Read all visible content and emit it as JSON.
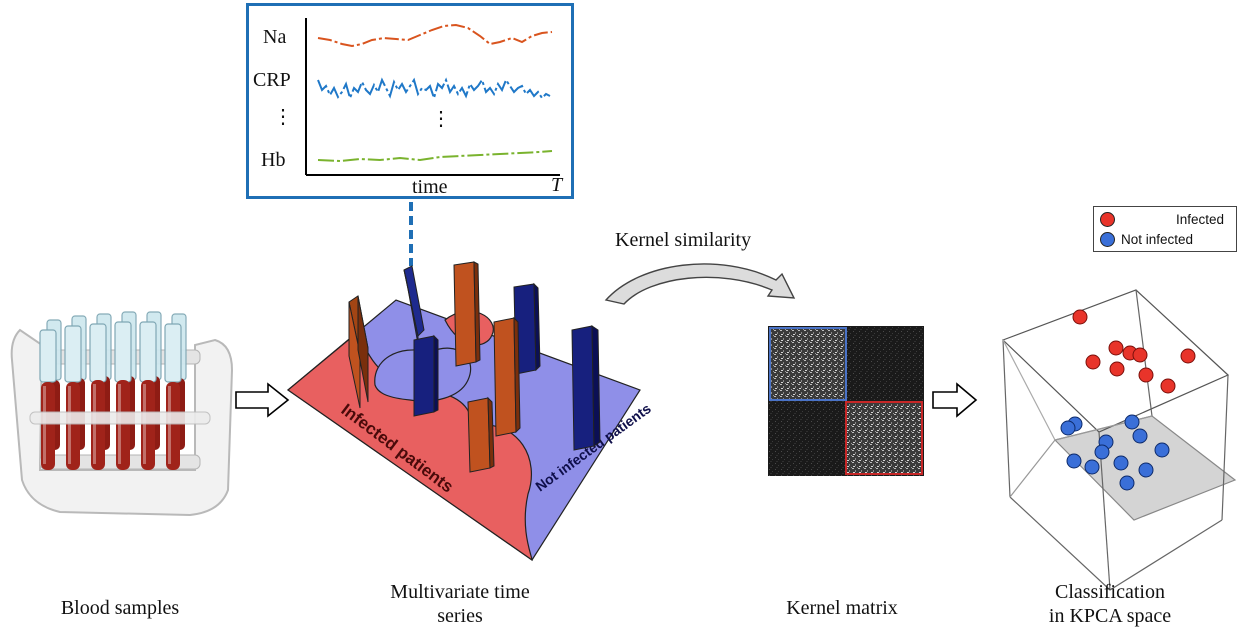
{
  "captions": {
    "blood": "Blood samples",
    "multivariate_line1": "Multivariate time",
    "multivariate_line2": "series",
    "kernel_matrix": "Kernel matrix",
    "classification_line1": "Classification",
    "classification_line2": "in KPCA space"
  },
  "timeseries_panel": {
    "labels": [
      "Na",
      "CRP",
      "Hb"
    ],
    "dots": "⋮",
    "x_label": "time",
    "x_end": "T",
    "border_color": "#1f6fb5"
  },
  "kernel_similarity_label": "Kernel similarity",
  "map_regions": {
    "infected": "Infected patients",
    "not_infected": "Not infected patients",
    "infected_color": "#e86060",
    "not_infected_color": "#8f8fe8"
  },
  "legend": {
    "infected": "Infected",
    "not_infected": "Not infected",
    "infected_color": "#e8342a",
    "not_infected_color": "#3a6fd8"
  },
  "icons": [
    "right-arrow-icon",
    "curved-arrow-icon",
    "test-tube-rack-icon"
  ]
}
